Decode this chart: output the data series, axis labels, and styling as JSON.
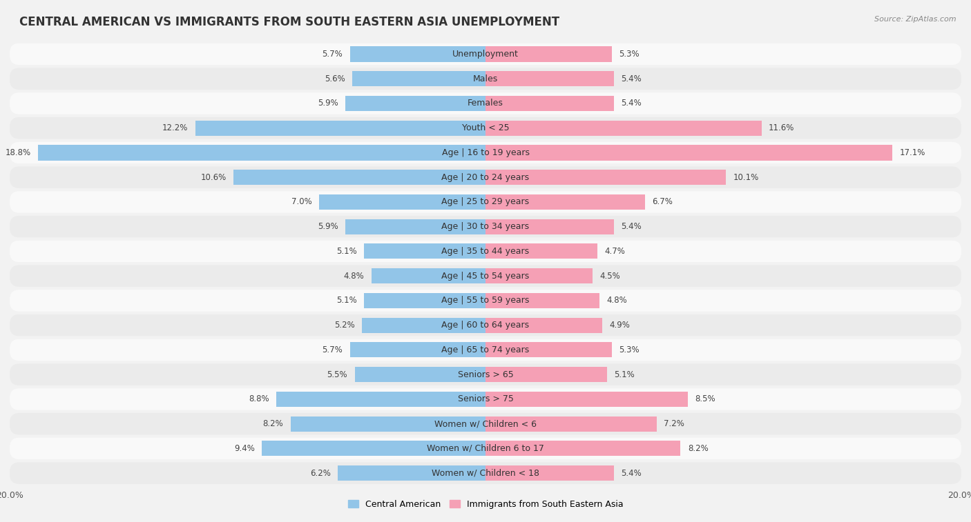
{
  "title": "CENTRAL AMERICAN VS IMMIGRANTS FROM SOUTH EASTERN ASIA UNEMPLOYMENT",
  "source": "Source: ZipAtlas.com",
  "categories": [
    "Unemployment",
    "Males",
    "Females",
    "Youth < 25",
    "Age | 16 to 19 years",
    "Age | 20 to 24 years",
    "Age | 25 to 29 years",
    "Age | 30 to 34 years",
    "Age | 35 to 44 years",
    "Age | 45 to 54 years",
    "Age | 55 to 59 years",
    "Age | 60 to 64 years",
    "Age | 65 to 74 years",
    "Seniors > 65",
    "Seniors > 75",
    "Women w/ Children < 6",
    "Women w/ Children 6 to 17",
    "Women w/ Children < 18"
  ],
  "left_values": [
    5.7,
    5.6,
    5.9,
    12.2,
    18.8,
    10.6,
    7.0,
    5.9,
    5.1,
    4.8,
    5.1,
    5.2,
    5.7,
    5.5,
    8.8,
    8.2,
    9.4,
    6.2
  ],
  "right_values": [
    5.3,
    5.4,
    5.4,
    11.6,
    17.1,
    10.1,
    6.7,
    5.4,
    4.7,
    4.5,
    4.8,
    4.9,
    5.3,
    5.1,
    8.5,
    7.2,
    8.2,
    5.4
  ],
  "left_color": "#92c5e8",
  "right_color": "#f5a0b5",
  "left_label": "Central American",
  "right_label": "Immigrants from South Eastern Asia",
  "xlim": 20.0,
  "background_color": "#f2f2f2",
  "row_color_light": "#f9f9f9",
  "row_color_dark": "#ebebeb",
  "title_fontsize": 12,
  "label_fontsize": 9,
  "value_fontsize": 8.5,
  "bar_height": 0.62
}
